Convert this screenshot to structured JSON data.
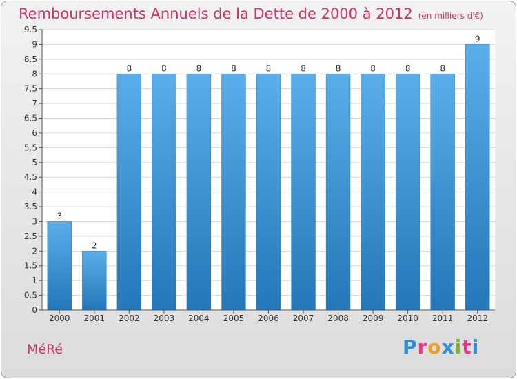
{
  "title": "Remboursements Annuels de la Dette de 2000 à 2012",
  "subtitle": "(en milliers d'€)",
  "commune": "MéRé",
  "logo": {
    "text": "Proxiti",
    "colors": [
      "#2b8fd8",
      "#e83a8a",
      "#f0a020",
      "#2b8fd8",
      "#7ab829",
      "#e83a8a",
      "#2b8fd8"
    ]
  },
  "chart_data": {
    "type": "bar",
    "categories": [
      "2000",
      "2001",
      "2002",
      "2003",
      "2004",
      "2005",
      "2006",
      "2007",
      "2008",
      "2009",
      "2010",
      "2011",
      "2012"
    ],
    "values": [
      3,
      2,
      8,
      8,
      8,
      8,
      8,
      8,
      8,
      8,
      8,
      8,
      9
    ],
    "data_labels": [
      "3",
      "2",
      "8",
      "8",
      "8",
      "8",
      "8",
      "8",
      "8",
      "8",
      "8",
      "8",
      "9"
    ],
    "yticks": [
      "0",
      "0.5",
      "1",
      "1.5",
      "2",
      "2.5",
      "3",
      "3.5",
      "4",
      "4.5",
      "5",
      "5.5",
      "6",
      "6.5",
      "7",
      "7.5",
      "8",
      "8.5",
      "9",
      "9.5"
    ],
    "ylim": [
      0,
      9.5
    ],
    "grid": true,
    "bar_color": "#3d93d8"
  }
}
